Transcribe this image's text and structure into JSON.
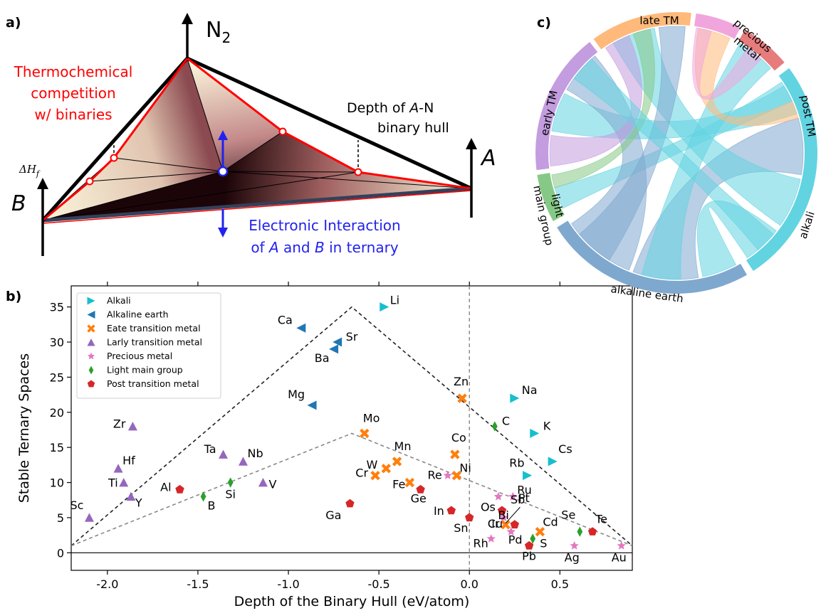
{
  "panel_labels": {
    "a": "a)",
    "b": "b)",
    "c": "c)"
  },
  "panel_a": {
    "n2_label": "N",
    "n2_sub": "2",
    "a_label": "A",
    "b_label": "B",
    "dh_label": "ΔH",
    "dh_sub": "f",
    "thermo_lines": [
      "Thermochemical",
      "competition",
      "w/ binaries"
    ],
    "depth_line1_pre": "Depth of ",
    "depth_line1_var": "A",
    "depth_line1_post": "-N",
    "depth_line2": "binary hull",
    "elec_line1": "Electronic Interaction",
    "elec_line2_pre": "of ",
    "elec_line2_a": "A",
    "elec_line2_mid": " and ",
    "elec_line2_b": "B",
    "elec_line2_post": " in ternary",
    "colors": {
      "red": "#ff0000",
      "blue": "#2222ee",
      "black": "#000000"
    }
  },
  "chart_data": {
    "type": "scatter",
    "xlabel": "Depth of the Binary Hull (eV/atom)",
    "ylabel": "Stable Ternary Spaces",
    "xlim": [
      -2.2,
      0.9
    ],
    "ylim": [
      -2.5,
      38
    ],
    "xticks": [
      -2.0,
      -1.5,
      -1.0,
      -0.5,
      0.0,
      0.5
    ],
    "xtick_labels": [
      "-2.0",
      "-1.5",
      "-1.0",
      "-0.5",
      "0.0",
      "0.5"
    ],
    "yticks": [
      0,
      5,
      10,
      15,
      20,
      25,
      30,
      35
    ],
    "ytick_labels": [
      "0",
      "5",
      "10",
      "15",
      "20",
      "25",
      "30",
      "35"
    ],
    "legend_position": "top-left",
    "grid": false,
    "bounds": {
      "outer": [
        [
          -2.2,
          1
        ],
        [
          -0.65,
          35
        ],
        [
          0.9,
          1
        ]
      ],
      "inner": [
        [
          -2.2,
          1
        ],
        [
          -0.65,
          17
        ],
        [
          0.9,
          1
        ]
      ],
      "zero_line_x": 0
    },
    "series": [
      {
        "name": "Alkali",
        "marker": "tri-right",
        "color": "#17becf",
        "points": [
          [
            "Li",
            -0.47,
            35
          ],
          [
            "Na",
            0.25,
            22
          ],
          [
            "K",
            0.36,
            17
          ],
          [
            "Cs",
            0.46,
            13
          ],
          [
            "Rb",
            0.32,
            11
          ]
        ]
      },
      {
        "name": "Alkaline earth",
        "marker": "tri-left",
        "color": "#1f77b4",
        "points": [
          [
            "Ca",
            -0.93,
            32
          ],
          [
            "Sr",
            -0.73,
            30
          ],
          [
            "Ba",
            -0.75,
            29
          ],
          [
            "Mg",
            -0.87,
            21
          ]
        ]
      },
      {
        "name": "Eate transition metal",
        "marker": "x",
        "color": "#ff7f0e",
        "points": [
          [
            "Zn",
            -0.04,
            22
          ],
          [
            "Mo",
            -0.58,
            17
          ],
          [
            "Co",
            -0.08,
            14
          ],
          [
            "Mn",
            -0.4,
            13
          ],
          [
            "W",
            -0.46,
            12
          ],
          [
            "Ni",
            -0.07,
            11
          ],
          [
            "Cr",
            -0.52,
            11
          ],
          [
            "Fe",
            -0.33,
            10
          ],
          [
            "Cu",
            0.2,
            4
          ],
          [
            "Cd",
            0.39,
            3
          ]
        ]
      },
      {
        "name": "Larly transition metal",
        "marker": "tri-up",
        "color": "#9467bd",
        "points": [
          [
            "Zr",
            -1.86,
            18
          ],
          [
            "Ta",
            -1.36,
            14
          ],
          [
            "Nb",
            -1.25,
            13
          ],
          [
            "Hf",
            -1.94,
            12
          ],
          [
            "Ti",
            -1.91,
            10
          ],
          [
            "V",
            -1.14,
            10
          ],
          [
            "Y",
            -1.87,
            8
          ],
          [
            "Sc",
            -2.1,
            5
          ]
        ]
      },
      {
        "name": "Precious metal",
        "marker": "star",
        "color": "#e377c2",
        "points": [
          [
            "Re",
            -0.12,
            11
          ],
          [
            "Os",
            0.16,
            8
          ],
          [
            "Ru",
            0.24,
            8
          ],
          [
            "Ir",
            0.19,
            5
          ],
          [
            "Pd",
            0.23,
            3
          ],
          [
            "Rh",
            0.12,
            2
          ],
          [
            "Ag",
            0.58,
            1
          ],
          [
            "Au",
            0.84,
            1
          ]
        ]
      },
      {
        "name": "Light main group",
        "marker": "diamond",
        "color": "#2ca02c",
        "points": [
          [
            "C",
            0.14,
            18
          ],
          [
            "Si",
            -1.32,
            10
          ],
          [
            "B",
            -1.47,
            8
          ],
          [
            "Se",
            0.61,
            3
          ],
          [
            "S",
            0.35,
            2
          ]
        ]
      },
      {
        "name": "Post transition metal",
        "marker": "pentagon",
        "color": "#d62728",
        "points": [
          [
            "Al",
            -1.6,
            9
          ],
          [
            "Ge",
            -0.27,
            9
          ],
          [
            "Ga",
            -0.66,
            7
          ],
          [
            "In",
            -0.1,
            6
          ],
          [
            "Sb",
            0.18,
            6
          ],
          [
            "Sn",
            0.0,
            5
          ],
          [
            "Bi",
            0.25,
            4
          ],
          [
            "Te",
            0.68,
            3
          ],
          [
            "Pb",
            0.33,
            1
          ]
        ]
      }
    ]
  },
  "panel_c": {
    "groups": [
      {
        "key": "late",
        "label": "late TM",
        "color": "#ffb97a"
      },
      {
        "key": "precious",
        "label": "precious metal",
        "label_lines": [
          "precious",
          "metal"
        ],
        "color": "#f0a6dc"
      },
      {
        "key": "post",
        "label": "post TM",
        "color": "#e67c7c"
      },
      {
        "key": "alkali",
        "label": "alkali",
        "color": "#62d3e1"
      },
      {
        "key": "alkearth",
        "label": "alkaline earth",
        "color": "#7fa8cf"
      },
      {
        "key": "light",
        "label": "light main group",
        "label_lines": [
          "light",
          "main group"
        ],
        "color": "#86c986"
      },
      {
        "key": "early",
        "label": "early TM",
        "color": "#c39ddf"
      }
    ]
  }
}
